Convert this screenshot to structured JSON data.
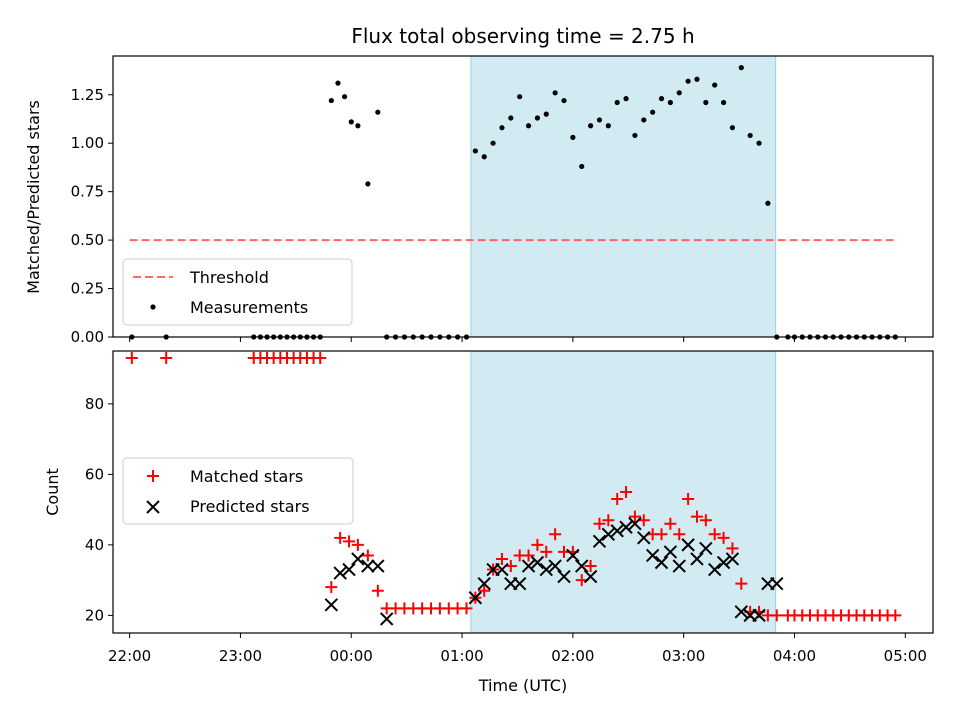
{
  "chart_data": [
    {
      "type": "scatter",
      "title": "Flux total observing time = 2.75 h",
      "ylabel": "Matched/Predicted stars",
      "xlabel": "",
      "xlim": [
        -2.15,
        5.25
      ],
      "ylim": [
        0.0,
        1.45
      ],
      "yticks": [
        0.0,
        0.25,
        0.5,
        0.75,
        1.0,
        1.25
      ],
      "ytick_labels": [
        "0.00",
        "0.25",
        "0.50",
        "0.75",
        "1.00",
        "1.25"
      ],
      "shaded_region": {
        "x0": 1.08,
        "x1": 3.83,
        "color": "#add8e6"
      },
      "threshold": {
        "label": "Threshold",
        "value": 0.5,
        "x0": -2.0,
        "x1": 4.9,
        "color": "#ff6666"
      },
      "measurements": {
        "label": "Measurements",
        "x": [
          -1.98,
          -1.67,
          -0.88,
          -0.82,
          -0.76,
          -0.7,
          -0.64,
          -0.58,
          -0.52,
          -0.46,
          -0.4,
          -0.34,
          -0.28,
          -0.18,
          -0.12,
          -0.06,
          0.0,
          0.06,
          0.15,
          0.24,
          0.32,
          0.4,
          0.48,
          0.56,
          0.64,
          0.72,
          0.8,
          0.88,
          0.96,
          1.04,
          1.12,
          1.2,
          1.28,
          1.36,
          1.44,
          1.52,
          1.6,
          1.68,
          1.76,
          1.84,
          1.92,
          2.0,
          2.08,
          2.16,
          2.24,
          2.32,
          2.4,
          2.48,
          2.56,
          2.64,
          2.72,
          2.8,
          2.88,
          2.96,
          3.04,
          3.12,
          3.2,
          3.28,
          3.36,
          3.44,
          3.52,
          3.6,
          3.68,
          3.76,
          3.84,
          3.94,
          4.0,
          4.07,
          4.14,
          4.21,
          4.28,
          4.35,
          4.42,
          4.49,
          4.56,
          4.63,
          4.7,
          4.77,
          4.84,
          4.91
        ],
        "y": [
          0.0,
          0.0,
          0.0,
          0.0,
          0.0,
          0.0,
          0.0,
          0.0,
          0.0,
          0.0,
          0.0,
          0.0,
          0.0,
          1.22,
          1.31,
          1.24,
          1.11,
          1.09,
          0.79,
          1.16,
          0.0,
          0.0,
          0.0,
          0.0,
          0.0,
          0.0,
          0.0,
          0.0,
          0.0,
          0.0,
          0.96,
          0.93,
          1.0,
          1.08,
          1.13,
          1.24,
          1.09,
          1.13,
          1.15,
          1.26,
          1.22,
          1.03,
          0.88,
          1.09,
          1.12,
          1.09,
          1.21,
          1.23,
          1.04,
          1.12,
          1.16,
          1.23,
          1.21,
          1.26,
          1.32,
          1.33,
          1.21,
          1.3,
          1.21,
          1.08,
          1.39,
          1.04,
          1.0,
          0.69,
          0.0,
          0.0,
          0.0,
          0.0,
          0.0,
          0.0,
          0.0,
          0.0,
          0.0,
          0.0,
          0.0,
          0.0,
          0.0,
          0.0,
          0.0,
          0.0
        ],
        "color": "#000000"
      },
      "legend_position": "lower-left"
    },
    {
      "type": "scatter",
      "title": "",
      "ylabel": "Count",
      "xlabel": "Time (UTC)",
      "xlim": [
        -2.15,
        5.25
      ],
      "ylim": [
        15,
        95
      ],
      "yticks": [
        20,
        40,
        60,
        80
      ],
      "ytick_labels": [
        "20",
        "40",
        "60",
        "80"
      ],
      "xticks": [
        -2.0,
        -1.0,
        0.0,
        1.0,
        2.0,
        3.0,
        4.0,
        5.0
      ],
      "xtick_labels": [
        "22:00",
        "23:00",
        "00:00",
        "01:00",
        "02:00",
        "03:00",
        "04:00",
        "05:00"
      ],
      "shaded_region": {
        "x0": 1.08,
        "x1": 3.83,
        "color": "#add8e6"
      },
      "series": [
        {
          "name": "Matched stars",
          "marker": "+",
          "color": "#ff0000",
          "x": [
            -1.98,
            -1.67,
            -0.88,
            -0.82,
            -0.76,
            -0.7,
            -0.64,
            -0.58,
            -0.52,
            -0.46,
            -0.4,
            -0.34,
            -0.28,
            -0.18,
            -0.1,
            -0.02,
            0.06,
            0.15,
            0.24,
            0.32,
            0.4,
            0.48,
            0.56,
            0.64,
            0.72,
            0.8,
            0.88,
            0.96,
            1.04,
            1.12,
            1.2,
            1.28,
            1.36,
            1.44,
            1.52,
            1.6,
            1.68,
            1.76,
            1.84,
            1.92,
            2.0,
            2.08,
            2.16,
            2.24,
            2.32,
            2.4,
            2.48,
            2.56,
            2.64,
            2.72,
            2.8,
            2.88,
            2.96,
            3.04,
            3.12,
            3.2,
            3.28,
            3.36,
            3.44,
            3.52,
            3.6,
            3.68,
            3.76,
            3.84,
            3.94,
            4.0,
            4.07,
            4.14,
            4.21,
            4.28,
            4.35,
            4.42,
            4.49,
            4.56,
            4.63,
            4.7,
            4.77,
            4.84,
            4.91
          ],
          "y": [
            93,
            93,
            93,
            93,
            93,
            93,
            93,
            93,
            93,
            93,
            93,
            93,
            93,
            28,
            42,
            41,
            40,
            37,
            27,
            22,
            22,
            22,
            22,
            22,
            22,
            22,
            22,
            22,
            22,
            25,
            27,
            33,
            36,
            34,
            37,
            37,
            40,
            38,
            43,
            38,
            38,
            30,
            34,
            46,
            47,
            53,
            55,
            48,
            47,
            43,
            43,
            46,
            43,
            53,
            48,
            47,
            43,
            42,
            39,
            29,
            21,
            21,
            20,
            20,
            20,
            20,
            20,
            20,
            20,
            20,
            20,
            20,
            20,
            20,
            20,
            20,
            20,
            20,
            20
          ]
        },
        {
          "name": "Predicted stars",
          "marker": "x",
          "color": "#000000",
          "x": [
            -0.18,
            -0.1,
            -0.02,
            0.06,
            0.15,
            0.24,
            0.32,
            1.12,
            1.2,
            1.28,
            1.36,
            1.44,
            1.52,
            1.6,
            1.68,
            1.76,
            1.84,
            1.92,
            2.0,
            2.08,
            2.16,
            2.24,
            2.32,
            2.4,
            2.48,
            2.56,
            2.64,
            2.72,
            2.8,
            2.88,
            2.96,
            3.04,
            3.12,
            3.2,
            3.28,
            3.36,
            3.44,
            3.52,
            3.6,
            3.68,
            3.76,
            3.84
          ],
          "y": [
            23,
            32,
            33,
            36,
            34,
            34,
            19,
            25,
            29,
            33,
            33,
            29,
            29,
            34,
            35,
            33,
            34,
            31,
            37,
            34,
            31,
            41,
            43,
            44,
            45,
            46,
            42,
            37,
            35,
            38,
            34,
            40,
            36,
            39,
            33,
            35,
            36,
            21,
            20,
            20,
            29,
            29
          ]
        }
      ],
      "legend_position": "center-left"
    }
  ]
}
